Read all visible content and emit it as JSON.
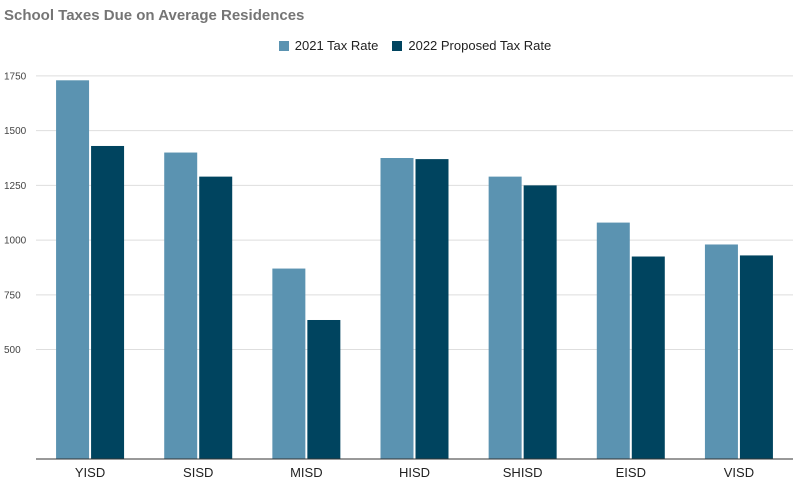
{
  "colors": {
    "series_2021": "#5b93b1",
    "series_2022": "#00445f",
    "grid": "#dedede",
    "axis": "#333333"
  },
  "chart_data": {
    "type": "bar",
    "title": "School Taxes Due on Average Residences",
    "xlabel": "",
    "ylabel": "",
    "categories": [
      "YISD",
      "SISD",
      "MISD",
      "HISD",
      "SHISD",
      "EISD",
      "VISD"
    ],
    "series": [
      {
        "name": "2021 Tax Rate",
        "values": [
          1730,
          1400,
          870,
          1375,
          1290,
          1080,
          980
        ]
      },
      {
        "name": "2022 Proposed Tax Rate",
        "values": [
          1430,
          1290,
          635,
          1370,
          1250,
          925,
          930
        ]
      }
    ],
    "ylim": [
      0,
      1750
    ],
    "yticks": [
      500,
      750,
      1000,
      1250,
      1500,
      1750
    ],
    "grid": true,
    "legend_position": "top"
  }
}
